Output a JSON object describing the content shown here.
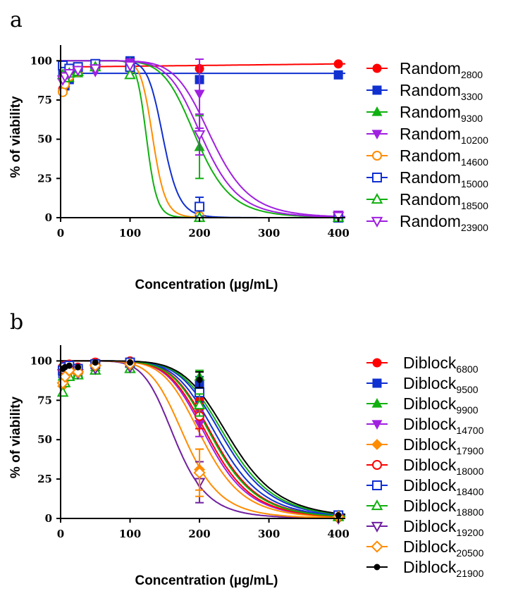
{
  "chart_data": [
    {
      "panel": "a",
      "type": "scatter",
      "xlabel": "Concentration (µg/mL)",
      "ylabel": "% of viability",
      "xlim": [
        0,
        410
      ],
      "ylim": [
        0,
        110
      ],
      "xticks": [
        0,
        100,
        200,
        300,
        400
      ],
      "yticks": [
        0,
        25,
        50,
        75,
        100
      ],
      "grid": false,
      "legend_position": "right",
      "series": [
        {
          "name": "Random",
          "sub": "2800",
          "color": "#ff0000",
          "marker": "circle",
          "filled": true,
          "x": [
            3.125,
            6.25,
            12.5,
            25,
            50,
            100,
            200,
            400
          ],
          "y": [
            82,
            88,
            91,
            95,
            97,
            98,
            95,
            98
          ],
          "err": [
            0,
            0,
            0,
            0,
            0,
            0,
            0,
            0
          ]
        },
        {
          "name": "Random",
          "sub": "3300",
          "color": "#1030d0",
          "marker": "square",
          "filled": true,
          "x": [
            3.125,
            6.25,
            12.5,
            25,
            50,
            100,
            200,
            400
          ],
          "y": [
            93,
            84,
            88,
            94,
            98,
            100,
            88,
            91
          ],
          "err": [
            0,
            0,
            0,
            0,
            0,
            0,
            0,
            0
          ]
        },
        {
          "name": "Random",
          "sub": "9300",
          "color": "#10b010",
          "marker": "triangle",
          "filled": true,
          "x": [
            3.125,
            6.25,
            12.5,
            25,
            50,
            100,
            200,
            400
          ],
          "y": [
            83,
            86,
            89,
            92,
            97,
            99,
            45,
            1
          ],
          "err": [
            0,
            0,
            0,
            0,
            0,
            0,
            20,
            0
          ]
        },
        {
          "name": "Random",
          "sub": "10200",
          "color": "#a020e0",
          "marker": "triangle-down",
          "filled": true,
          "x": [
            3.125,
            6.25,
            12.5,
            25,
            50,
            100,
            200,
            400
          ],
          "y": [
            86,
            90,
            92,
            93,
            93,
            99,
            79,
            2
          ],
          "err": [
            0,
            0,
            0,
            0,
            0,
            0,
            22,
            0
          ]
        },
        {
          "name": "Random",
          "sub": "14600",
          "color": "#ff8c00",
          "marker": "circle",
          "filled": false,
          "x": [
            3.125,
            6.25,
            12.5,
            25,
            50,
            100,
            200,
            400
          ],
          "y": [
            80,
            85,
            90,
            93,
            96,
            95,
            1,
            0
          ],
          "err": [
            0,
            0,
            0,
            0,
            0,
            0,
            0,
            0
          ]
        },
        {
          "name": "Random",
          "sub": "15000",
          "color": "#1030d0",
          "marker": "square",
          "filled": false,
          "x": [
            3.125,
            6.25,
            12.5,
            25,
            50,
            100,
            200,
            400
          ],
          "y": [
            97,
            93,
            95,
            96,
            98,
            96,
            7,
            0
          ],
          "err": [
            0,
            0,
            0,
            0,
            0,
            0,
            6,
            0
          ]
        },
        {
          "name": "Random",
          "sub": "18500",
          "color": "#10b010",
          "marker": "triangle",
          "filled": false,
          "x": [
            3.125,
            6.25,
            12.5,
            25,
            50,
            100,
            200,
            400
          ],
          "y": [
            91,
            89,
            92,
            93,
            96,
            91,
            0,
            0
          ],
          "err": [
            0,
            0,
            0,
            0,
            0,
            0,
            0,
            0
          ]
        },
        {
          "name": "Random",
          "sub": "23900",
          "color": "#a020e0",
          "marker": "triangle-down",
          "filled": false,
          "x": [
            3.125,
            6.25,
            12.5,
            25,
            50,
            100,
            200,
            400
          ],
          "y": [
            88,
            90,
            92,
            94,
            95,
            97,
            53,
            1
          ],
          "err": [
            0,
            0,
            0,
            0,
            0,
            0,
            13,
            0
          ]
        }
      ],
      "curves": [
        {
          "color": "#ff0000",
          "type": "linear",
          "y0": 96,
          "slope": 0.005
        },
        {
          "color": "#1030d0",
          "type": "flat",
          "points": [
            [
              0,
              92
            ],
            [
              410,
              92
            ]
          ]
        },
        {
          "color": "#10b010",
          "type": "logistic",
          "ec50": 196,
          "hill": 8
        },
        {
          "color": "#a020e0",
          "type": "logistic",
          "ec50": 218,
          "hill": 8
        },
        {
          "color": "#ff8c00",
          "type": "logistic",
          "ec50": 133,
          "hill": 15
        },
        {
          "color": "#1030d0",
          "type": "logistic",
          "ec50": 148,
          "hill": 13
        },
        {
          "color": "#10b010",
          "type": "logistic",
          "ec50": 124,
          "hill": 17
        },
        {
          "color": "#a020e0",
          "type": "logistic",
          "ec50": 205,
          "hill": 8
        }
      ]
    },
    {
      "panel": "b",
      "type": "scatter",
      "xlabel": "Concentration (µg/mL)",
      "ylabel": "% of viability",
      "xlim": [
        0,
        410
      ],
      "ylim": [
        0,
        110
      ],
      "xticks": [
        0,
        100,
        200,
        300,
        400
      ],
      "yticks": [
        0,
        25,
        50,
        75,
        100
      ],
      "grid": false,
      "legend_position": "right",
      "series": [
        {
          "name": "Diblock",
          "sub": "6800",
          "color": "#ff0000",
          "marker": "circle",
          "filled": true,
          "x": [
            3.125,
            6.25,
            12.5,
            25,
            50,
            100,
            200,
            400
          ],
          "y": [
            95,
            97,
            98,
            96,
            99,
            100,
            75,
            1
          ],
          "err": [
            0,
            0,
            0,
            0,
            0,
            0,
            6,
            0
          ]
        },
        {
          "name": "Diblock",
          "sub": "9500",
          "color": "#1030d0",
          "marker": "square",
          "filled": true,
          "x": [
            3.125,
            6.25,
            12.5,
            25,
            50,
            100,
            200,
            400
          ],
          "y": [
            92,
            94,
            95,
            93,
            98,
            99,
            85,
            2
          ],
          "err": [
            0,
            0,
            0,
            0,
            0,
            0,
            5,
            0
          ]
        },
        {
          "name": "Diblock",
          "sub": "9900",
          "color": "#10b010",
          "marker": "triangle",
          "filled": true,
          "x": [
            3.125,
            6.25,
            12.5,
            25,
            50,
            100,
            200,
            400
          ],
          "y": [
            90,
            93,
            95,
            92,
            96,
            98,
            90,
            2
          ],
          "err": [
            0,
            0,
            0,
            0,
            0,
            0,
            4,
            0
          ]
        },
        {
          "name": "Diblock",
          "sub": "14700",
          "color": "#a020e0",
          "marker": "triangle-down",
          "filled": true,
          "x": [
            3.125,
            6.25,
            12.5,
            25,
            50,
            100,
            200,
            400
          ],
          "y": [
            93,
            95,
            96,
            94,
            97,
            98,
            60,
            1
          ],
          "err": [
            0,
            0,
            0,
            0,
            0,
            0,
            8,
            0
          ]
        },
        {
          "name": "Diblock",
          "sub": "17900",
          "color": "#ff8c00",
          "marker": "diamond",
          "filled": true,
          "x": [
            3.125,
            6.25,
            12.5,
            25,
            50,
            100,
            200,
            400
          ],
          "y": [
            84,
            88,
            93,
            92,
            97,
            99,
            31,
            0
          ],
          "err": [
            0,
            0,
            0,
            0,
            0,
            0,
            13,
            0
          ]
        },
        {
          "name": "Diblock",
          "sub": "18000",
          "color": "#ff0000",
          "marker": "circle",
          "filled": false,
          "x": [
            3.125,
            6.25,
            12.5,
            25,
            50,
            100,
            200,
            400
          ],
          "y": [
            96,
            97,
            97,
            95,
            99,
            99,
            65,
            1
          ],
          "err": [
            0,
            0,
            0,
            0,
            0,
            0,
            8,
            0
          ]
        },
        {
          "name": "Diblock",
          "sub": "18400",
          "color": "#1030d0",
          "marker": "square",
          "filled": false,
          "x": [
            3.125,
            6.25,
            12.5,
            25,
            50,
            100,
            200,
            400
          ],
          "y": [
            94,
            96,
            97,
            95,
            98,
            99,
            80,
            2
          ],
          "err": [
            0,
            0,
            0,
            0,
            0,
            0,
            6,
            0
          ]
        },
        {
          "name": "Diblock",
          "sub": "18800",
          "color": "#10b010",
          "marker": "triangle",
          "filled": false,
          "x": [
            3.125,
            6.25,
            12.5,
            25,
            50,
            100,
            200,
            400
          ],
          "y": [
            80,
            86,
            90,
            91,
            94,
            95,
            72,
            1
          ],
          "err": [
            0,
            0,
            0,
            0,
            0,
            0,
            7,
            0
          ]
        },
        {
          "name": "Diblock",
          "sub": "19200",
          "color": "#7020a0",
          "marker": "triangle-down",
          "filled": false,
          "x": [
            3.125,
            6.25,
            12.5,
            25,
            50,
            100,
            200,
            400
          ],
          "y": [
            92,
            90,
            94,
            92,
            95,
            96,
            23,
            0
          ],
          "err": [
            0,
            0,
            0,
            0,
            0,
            0,
            13,
            0
          ]
        },
        {
          "name": "Diblock",
          "sub": "20500",
          "color": "#ff8c00",
          "marker": "diamond",
          "filled": false,
          "x": [
            3.125,
            6.25,
            12.5,
            25,
            50,
            100,
            200,
            400
          ],
          "y": [
            86,
            90,
            94,
            93,
            97,
            98,
            29,
            1
          ],
          "err": [
            0,
            0,
            0,
            0,
            0,
            0,
            15,
            0
          ]
        },
        {
          "name": "Diblock",
          "sub": "21900",
          "color": "#000000",
          "marker": "circle",
          "filled": true,
          "small": true,
          "x": [
            3.125,
            6.25,
            12.5,
            25,
            50,
            100,
            200,
            400
          ],
          "y": [
            95,
            96,
            97,
            96,
            99,
            99,
            88,
            2
          ],
          "err": [
            0,
            0,
            0,
            0,
            0,
            0,
            5,
            0
          ]
        }
      ],
      "curves": [
        {
          "color": "#ff0000",
          "type": "logistic",
          "ec50": 222,
          "hill": 7
        },
        {
          "color": "#1030d0",
          "type": "logistic",
          "ec50": 236,
          "hill": 7
        },
        {
          "color": "#10b010",
          "type": "logistic",
          "ec50": 240,
          "hill": 7
        },
        {
          "color": "#a020e0",
          "type": "logistic",
          "ec50": 212,
          "hill": 7
        },
        {
          "color": "#ff8c00",
          "type": "logistic",
          "ec50": 205,
          "hill": 7
        },
        {
          "color": "#ff0000",
          "type": "logistic",
          "ec50": 215,
          "hill": 7
        },
        {
          "color": "#1030d0",
          "type": "logistic",
          "ec50": 228,
          "hill": 7
        },
        {
          "color": "#10b010",
          "type": "logistic",
          "ec50": 220,
          "hill": 7
        },
        {
          "color": "#7020a0",
          "type": "logistic",
          "ec50": 165,
          "hill": 7
        },
        {
          "color": "#ff8c00",
          "type": "logistic",
          "ec50": 180,
          "hill": 7
        },
        {
          "color": "#000000",
          "type": "logistic",
          "ec50": 245,
          "hill": 7
        }
      ]
    }
  ]
}
